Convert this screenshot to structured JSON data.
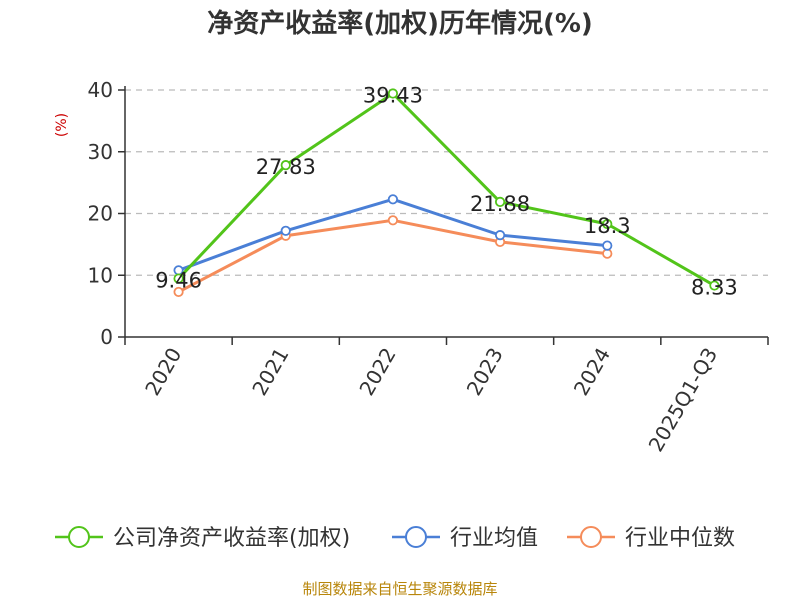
{
  "chart_data": {
    "type": "line",
    "title": "净资产收益率(加权)历年情况(%)",
    "ylabel": "(%)",
    "categories": [
      "2020",
      "2021",
      "2022",
      "2023",
      "2024",
      "2025Q1-Q3"
    ],
    "ylim": [
      0,
      40
    ],
    "yticks": [
      0,
      10,
      20,
      30,
      40
    ],
    "grid": true,
    "legend_position": "bottom",
    "series": [
      {
        "name": "公司净资产收益率(加权)",
        "color": "#52c41a",
        "values": [
          9.46,
          27.83,
          39.43,
          21.88,
          18.3,
          8.33
        ],
        "labels": [
          "9.46",
          "27.83",
          "39.43",
          "21.88",
          "18.3",
          "8.33"
        ]
      },
      {
        "name": "行业均值",
        "color": "#4a7fd6",
        "values": [
          10.8,
          17.2,
          22.3,
          16.5,
          14.8,
          null
        ]
      },
      {
        "name": "行业中位数",
        "color": "#f58c5a",
        "values": [
          7.3,
          16.4,
          18.9,
          15.4,
          13.5,
          null
        ]
      }
    ]
  },
  "source": "制图数据来自恒生聚源数据库"
}
